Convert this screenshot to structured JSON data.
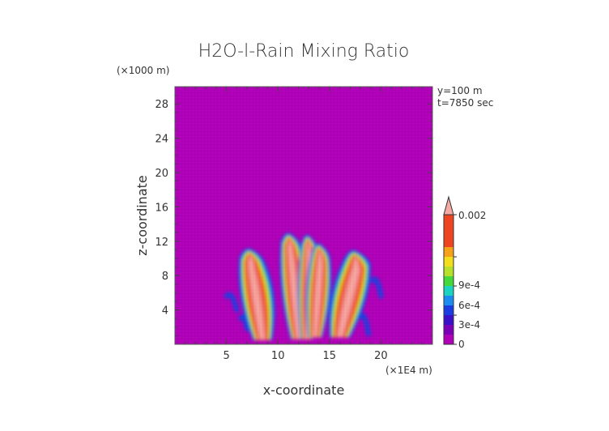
{
  "chart_data": {
    "type": "heatmap",
    "title": "H2O-l-Rain Mixing Ratio",
    "xlabel": "x-coordinate",
    "ylabel": "z-coordinate",
    "x_unit": "(×1E4 m)",
    "y_unit": "(×1000 m)",
    "xlim": [
      0,
      25
    ],
    "ylim": [
      0,
      30
    ],
    "x_ticks": [
      5,
      10,
      15,
      20
    ],
    "y_ticks": [
      4,
      8,
      12,
      16,
      20,
      24,
      28
    ],
    "annotations": [
      "y=100 m",
      "t=7850 sec"
    ],
    "colorbar": {
      "labels": [
        "0.002",
        "9e-4",
        "6e-4",
        "3e-4",
        "0"
      ],
      "label_values": [
        0.002,
        0.0009,
        0.0006,
        0.0003,
        0
      ],
      "extend": "max",
      "levels": [
        0,
        0.0001,
        0.0002,
        0.0003,
        0.0004,
        0.0005,
        0.0006,
        0.0007,
        0.0008,
        0.0009,
        0.001,
        0.002
      ],
      "colors": [
        "#b000b8",
        "#7b00b8",
        "#3a10c8",
        "#1a3ce0",
        "#1c8cf0",
        "#1ad4c0",
        "#44d83a",
        "#b6e02a",
        "#f2de1c",
        "#f5a21a",
        "#ee4422",
        "#f07a78"
      ],
      "extend_color": "#f5aaa4"
    },
    "background_color": "#b000b8",
    "plumes": [
      {
        "name": "left-plume",
        "base": [
          8.5,
          0.5
        ],
        "top": [
          7.4,
          10.8
        ],
        "width": 2.2
      },
      {
        "name": "center-left-plume",
        "base": [
          12.0,
          0.6
        ],
        "top": [
          11.2,
          12.6
        ],
        "width": 1.8
      },
      {
        "name": "center-plume",
        "base": [
          12.8,
          0.6
        ],
        "top": [
          13.0,
          12.4
        ],
        "width": 1.4
      },
      {
        "name": "center-right-plume",
        "base": [
          13.6,
          0.8
        ],
        "top": [
          14.1,
          11.4
        ],
        "width": 1.6
      },
      {
        "name": "right-plume",
        "base": [
          16.0,
          0.8
        ],
        "top": [
          17.6,
          10.6
        ],
        "width": 2.3
      }
    ]
  }
}
